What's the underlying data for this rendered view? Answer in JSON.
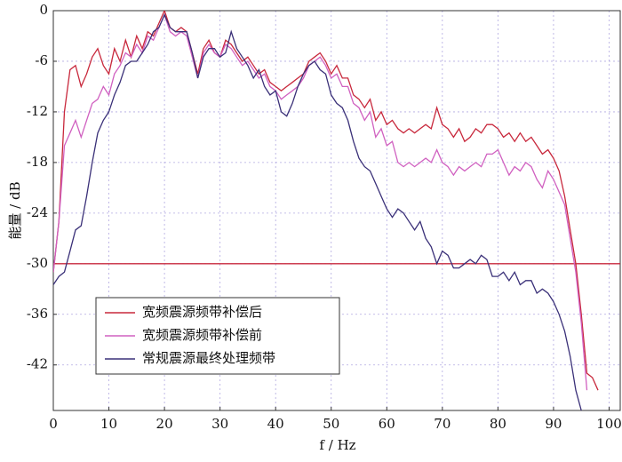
{
  "chart_data": {
    "type": "line",
    "xlabel": "f / Hz",
    "ylabel": "能量 / dB",
    "xlim": [
      0,
      102
    ],
    "ylim": [
      -47.4,
      0
    ],
    "xticks": [
      0,
      10,
      20,
      30,
      40,
      50,
      60,
      70,
      80,
      90,
      100
    ],
    "yticks": [
      0,
      -6,
      -12,
      -18,
      -24,
      -30,
      -36,
      -42
    ],
    "grid": true,
    "legend": "lower left",
    "reference_line": {
      "value": -30,
      "color": "#c8283c"
    },
    "series": [
      {
        "name": "宽频震源频带补偿后",
        "color": "#c8283c",
        "x": [
          0,
          1,
          2,
          3,
          4,
          5,
          6,
          7,
          8,
          9,
          10,
          11,
          12,
          13,
          14,
          15,
          16,
          17,
          18,
          19,
          20,
          21,
          22,
          23,
          24,
          25,
          26,
          27,
          28,
          29,
          30,
          31,
          32,
          33,
          34,
          35,
          36,
          37,
          38,
          39,
          40,
          41,
          42,
          43,
          44,
          45,
          46,
          47,
          48,
          49,
          50,
          51,
          52,
          53,
          54,
          55,
          56,
          57,
          58,
          59,
          60,
          61,
          62,
          63,
          64,
          65,
          66,
          67,
          68,
          69,
          70,
          71,
          72,
          73,
          74,
          75,
          76,
          77,
          78,
          79,
          80,
          81,
          82,
          83,
          84,
          85,
          86,
          87,
          88,
          89,
          90,
          91,
          92,
          93,
          94,
          95,
          96,
          97,
          98
        ],
        "values": [
          -31,
          -25,
          -12,
          -7,
          -6.5,
          -9,
          -7.5,
          -5.5,
          -4.5,
          -6.5,
          -7.5,
          -4.5,
          -6,
          -3.5,
          -5.5,
          -3,
          -4.5,
          -2.5,
          -3,
          -1.5,
          0,
          -2,
          -2.5,
          -2,
          -2.5,
          -5,
          -7.5,
          -4.5,
          -3.5,
          -5,
          -5.5,
          -3.5,
          -4,
          -5,
          -6,
          -5.5,
          -6.5,
          -7.5,
          -7,
          -8.5,
          -9,
          -9.5,
          -9,
          -8.5,
          -8,
          -7.5,
          -6,
          -5.5,
          -5,
          -6,
          -7.5,
          -6.5,
          -8,
          -8,
          -10,
          -10.5,
          -11.5,
          -10.5,
          -13,
          -12,
          -13.5,
          -13,
          -14,
          -14.5,
          -14,
          -14.5,
          -14,
          -13.5,
          -14,
          -11.5,
          -13.5,
          -14,
          -15,
          -14,
          -15.5,
          -15,
          -14,
          -14.5,
          -13.5,
          -13.5,
          -14,
          -15,
          -14.5,
          -15.5,
          -14.5,
          -15.5,
          -15,
          -16,
          -17,
          -16.5,
          -17.5,
          -19,
          -22,
          -26,
          -30,
          -36,
          -43,
          -43.5,
          -45
        ]
      },
      {
        "name": "宽频震源频带补偿前",
        "color": "#d060c0",
        "x": [
          0,
          1,
          2,
          3,
          4,
          5,
          6,
          7,
          8,
          9,
          10,
          11,
          12,
          13,
          14,
          15,
          16,
          17,
          18,
          19,
          20,
          21,
          22,
          23,
          24,
          25,
          26,
          27,
          28,
          29,
          30,
          31,
          32,
          33,
          34,
          35,
          36,
          37,
          38,
          39,
          40,
          41,
          42,
          43,
          44,
          45,
          46,
          47,
          48,
          49,
          50,
          51,
          52,
          53,
          54,
          55,
          56,
          57,
          58,
          59,
          60,
          61,
          62,
          63,
          64,
          65,
          66,
          67,
          68,
          69,
          70,
          71,
          72,
          73,
          74,
          75,
          76,
          77,
          78,
          79,
          80,
          81,
          82,
          83,
          84,
          85,
          86,
          87,
          88,
          89,
          90,
          91,
          92,
          93,
          94,
          95,
          96
        ],
        "values": [
          -31,
          -25,
          -16,
          -14.5,
          -13,
          -15,
          -13,
          -11,
          -10.5,
          -9,
          -10,
          -7.5,
          -6.5,
          -5,
          -5.5,
          -4,
          -5,
          -3,
          -3.5,
          -2,
          -0.5,
          -2.5,
          -3,
          -2.5,
          -3,
          -5.5,
          -8,
          -5,
          -4,
          -5,
          -5.5,
          -4,
          -4.5,
          -5.5,
          -6.5,
          -6,
          -7,
          -8,
          -7.5,
          -9,
          -9.5,
          -10.5,
          -10,
          -9.5,
          -9,
          -8,
          -6.5,
          -6,
          -5.5,
          -6.5,
          -8,
          -7.5,
          -9,
          -9,
          -11,
          -11.5,
          -13,
          -12,
          -15,
          -14,
          -16,
          -15.5,
          -18,
          -18.5,
          -18,
          -18.5,
          -18,
          -17.5,
          -18,
          -16.5,
          -18,
          -18.5,
          -19.5,
          -18.5,
          -19,
          -18.5,
          -18,
          -18.5,
          -17,
          -17,
          -16.5,
          -18,
          -19.5,
          -18.5,
          -19,
          -18,
          -18.5,
          -20,
          -21,
          -19,
          -20,
          -21.5,
          -23,
          -27,
          -31,
          -37,
          -45
        ]
      },
      {
        "name": "常规震源最终处理频带",
        "color": "#3a3078",
        "x": [
          0,
          1,
          2,
          3,
          4,
          5,
          6,
          7,
          8,
          9,
          10,
          11,
          12,
          13,
          14,
          15,
          16,
          17,
          18,
          19,
          20,
          21,
          22,
          23,
          24,
          25,
          26,
          27,
          28,
          29,
          30,
          31,
          32,
          33,
          34,
          35,
          36,
          37,
          38,
          39,
          40,
          41,
          42,
          43,
          44,
          45,
          46,
          47,
          48,
          49,
          50,
          51,
          52,
          53,
          54,
          55,
          56,
          57,
          58,
          59,
          60,
          61,
          62,
          63,
          64,
          65,
          66,
          67,
          68,
          69,
          70,
          71,
          72,
          73,
          74,
          75,
          76,
          77,
          78,
          79,
          80,
          81,
          82,
          83,
          84,
          85,
          86,
          87,
          88,
          89,
          90,
          91,
          92,
          93,
          94,
          95
        ],
        "values": [
          -32.5,
          -31.5,
          -31,
          -28.5,
          -26,
          -25.5,
          -22,
          -18,
          -14.5,
          -13,
          -12,
          -10,
          -8.5,
          -6.5,
          -6,
          -6,
          -5,
          -4,
          -2.5,
          -2,
          -0.5,
          -2,
          -2.5,
          -2.5,
          -2.5,
          -5,
          -8,
          -5.5,
          -4.5,
          -4.5,
          -5.5,
          -5,
          -2.5,
          -4.5,
          -5.5,
          -6.5,
          -8,
          -7,
          -9,
          -10,
          -9.5,
          -12,
          -12.5,
          -11,
          -9,
          -7.5,
          -6.5,
          -6,
          -7,
          -7.5,
          -10,
          -11,
          -11.5,
          -13,
          -15.5,
          -17.5,
          -18.5,
          -19,
          -20.5,
          -22,
          -23.5,
          -24.5,
          -23.5,
          -24,
          -25,
          -26,
          -25,
          -27,
          -28,
          -30,
          -28.5,
          -29,
          -30.5,
          -30.5,
          -30,
          -29.5,
          -30,
          -29,
          -29.5,
          -31.5,
          -31.5,
          -31,
          -32,
          -31,
          -32.5,
          -32,
          -32,
          -33.5,
          -33,
          -33.5,
          -34.5,
          -36,
          -38,
          -41,
          -45,
          -47.4
        ]
      }
    ]
  }
}
